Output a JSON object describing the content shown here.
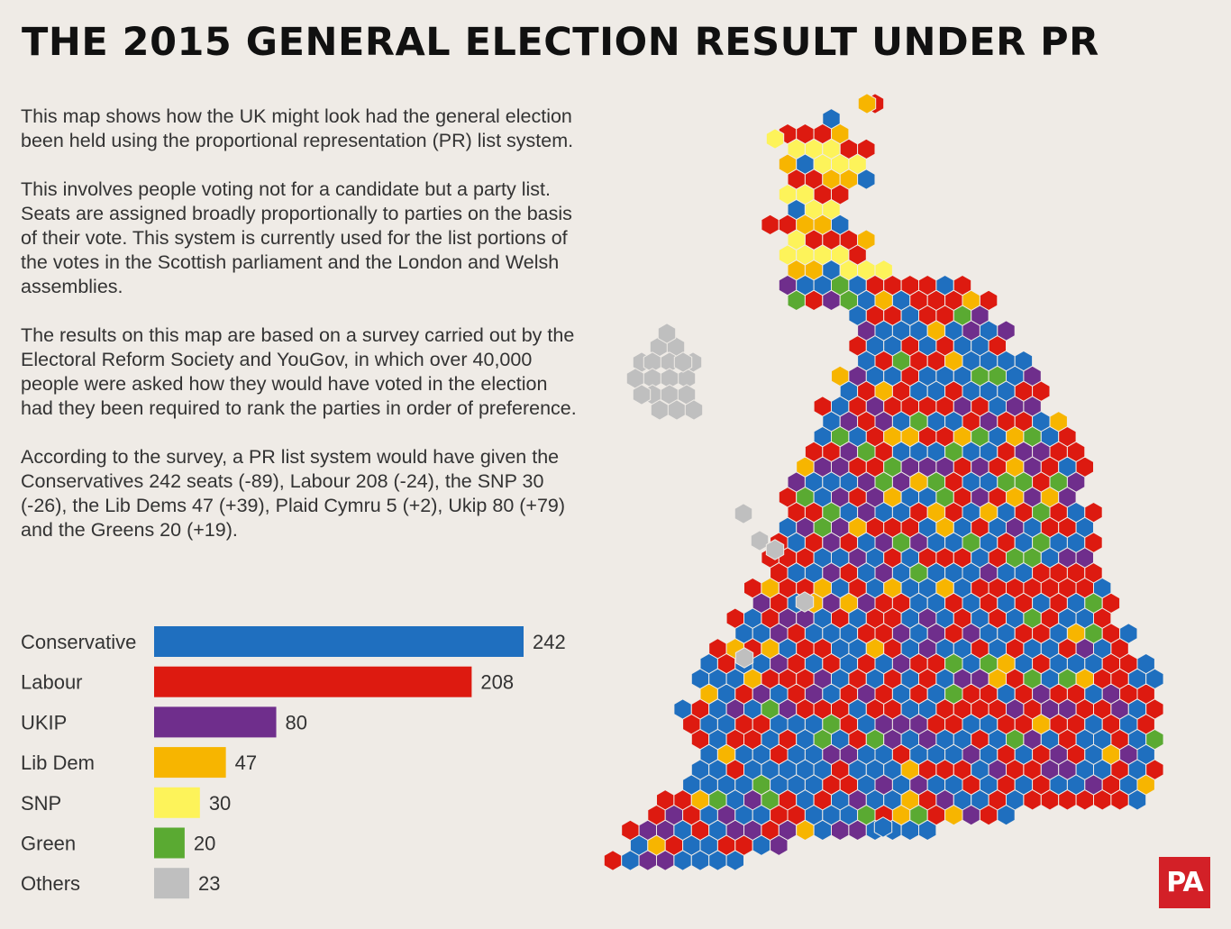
{
  "title": "THE 2015 GENERAL ELECTION RESULT UNDER PR",
  "paragraphs": [
    "This map shows how the UK might look had the general election been held using the proportional representation (PR) list system.",
    "This involves people voting not for a candidate but a party list. Seats are assigned broadly proportionally to parties on the basis of their vote. This system is currently used for the list portions of the votes in the Scottish parliament and the London and Welsh assemblies.",
    "The results on this map are based on a survey carried out by the Electoral Reform Society and YouGov, in which over 40,000 people were asked how they would have voted in the election had they been required to rank the parties in order of preference.",
    "According to the survey, a PR list system would have given the Conservatives 242 seats (-89), Labour 208 (-24), the SNP 30 (-26), the Lib Dems 47 (+39), Plaid Cymru 5 (+2), Ukip 80 (+79) and the Greens 20 (+19)."
  ],
  "chart_data": {
    "type": "bar",
    "orientation": "horizontal",
    "categories": [
      "Conservative",
      "Labour",
      "UKIP",
      "Lib Dem",
      "SNP",
      "Green",
      "Others"
    ],
    "values": [
      242,
      208,
      80,
      47,
      30,
      20,
      23
    ],
    "colors": [
      "#1f6fbf",
      "#dd1a10",
      "#6f2e8c",
      "#f7b500",
      "#fdf35a",
      "#5aaa32",
      "#bfbfbf"
    ],
    "value_labels": [
      "242",
      "208",
      "80",
      "47",
      "30",
      "20",
      "23"
    ],
    "grid": false,
    "legend": "none"
  },
  "map": {
    "type": "hex cartogram",
    "party_colors": {
      "C": "#1f6fbf",
      "L": "#dd1a10",
      "U": "#6f2e8c",
      "D": "#f7b500",
      "S": "#fdf35a",
      "G": "#5aaa32",
      "O": "#bfbfbf"
    }
  },
  "logo": "PA"
}
